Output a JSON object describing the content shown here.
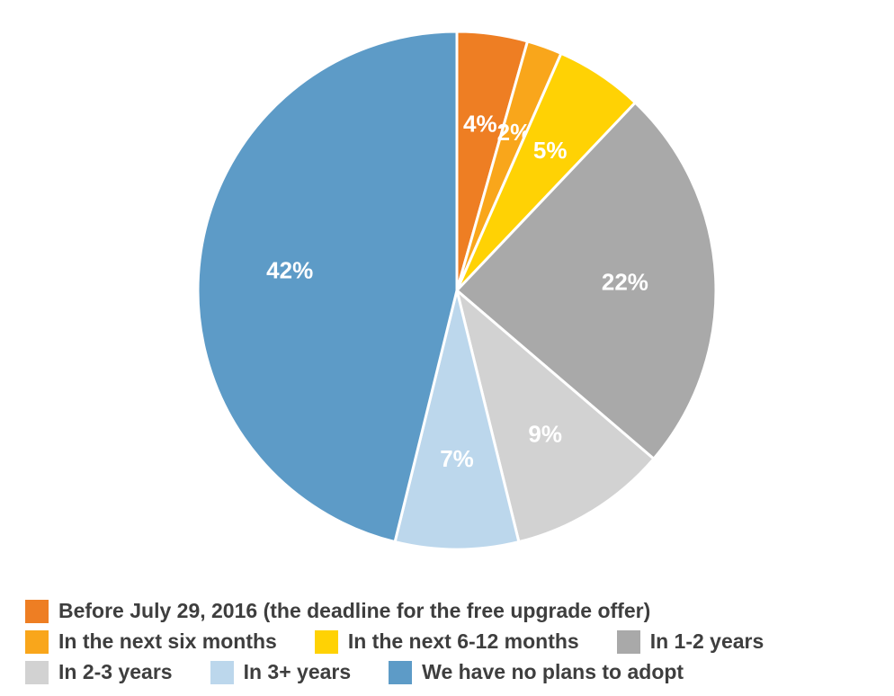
{
  "chart_data": {
    "type": "pie",
    "title": "",
    "segments": [
      {
        "label": "Before July 29, 2016 (the deadline for the free upgrade offer)",
        "value": 4,
        "value_label": "4%",
        "color": "#EE7E23"
      },
      {
        "label": "In the next six months",
        "value": 2,
        "value_label": "2%",
        "color": "#F9A61B"
      },
      {
        "label": "In the next 6-12 months",
        "value": 5,
        "value_label": "5%",
        "color": "#FFD204"
      },
      {
        "label": "In 1-2 years",
        "value": 22,
        "value_label": "22%",
        "color": "#A9A9A9"
      },
      {
        "label": "In 2-3 years",
        "value": 9,
        "value_label": "9%",
        "color": "#D2D2D2"
      },
      {
        "label": "In 3+ years",
        "value": 7,
        "value_label": "7%",
        "color": "#BCD7EC"
      },
      {
        "label": "We have no plans to adopt",
        "value": 42,
        "value_label": "42%",
        "color": "#5D9BC7"
      }
    ],
    "values_total": 91,
    "start_angle_deg": 0,
    "direction": "clockwise",
    "slice_separator_color": "#ffffff",
    "label_color": "#ffffff",
    "legend_position": "bottom",
    "legend_text_color": "#3e3e3e",
    "legend_rows": [
      [
        0
      ],
      [
        1,
        2,
        3
      ],
      [
        4,
        5,
        6
      ]
    ]
  }
}
